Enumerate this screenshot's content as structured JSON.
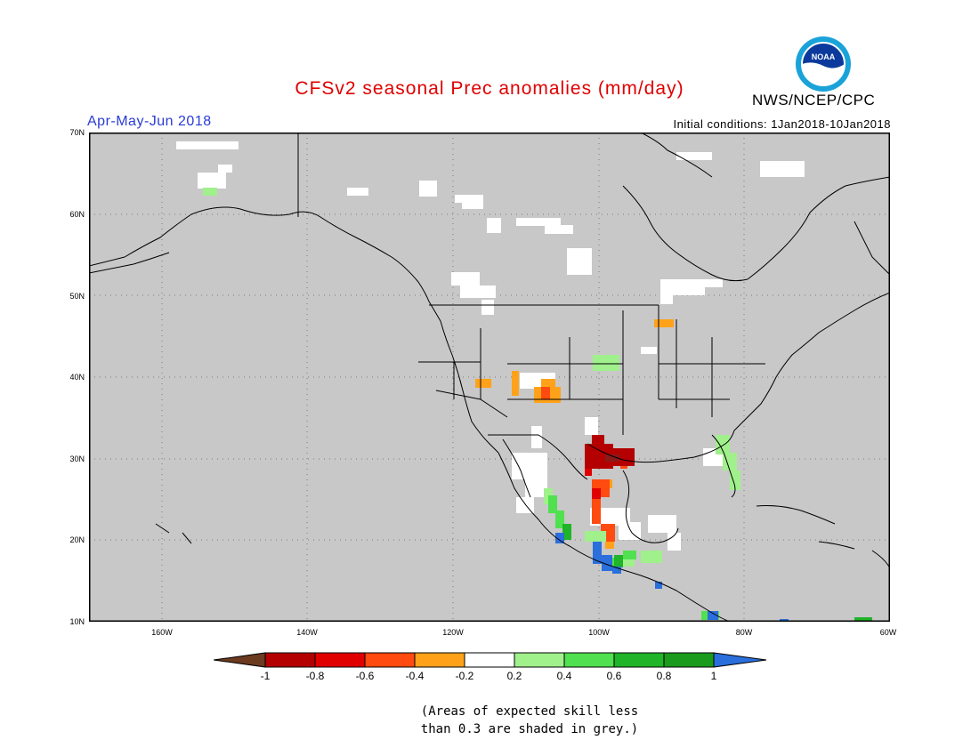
{
  "title": "CFSv2 seasonal Prec anomalies (mm/day)",
  "agency": "NWS/NCEP/CPC",
  "logo_text": "NOAA",
  "season": "Apr-May-Jun 2018",
  "initial_conditions": "Initial conditions: 1Jan2018-10Jan2018",
  "lat_labels": [
    "70N",
    "60N",
    "50N",
    "40N",
    "30N",
    "20N",
    "10N"
  ],
  "lon_labels": [
    "160W",
    "140W",
    "120W",
    "100W",
    "80W",
    "60W"
  ],
  "colorbar": {
    "labels": [
      "-1",
      "-0.8",
      "-0.6",
      "-0.4",
      "-0.2",
      "0.2",
      "0.4",
      "0.6",
      "0.8",
      "1"
    ],
    "colors": [
      "#6b3a1f",
      "#b40000",
      "#e00000",
      "#ff4a10",
      "#ffa21a",
      "#ffffff",
      "#a0f08c",
      "#50e050",
      "#20b428",
      "#1b9b1b",
      "#2a6fdc"
    ]
  },
  "note_line1": "(Areas of expected skill less",
  "note_line2": "than 0.3 are shaded in grey.)",
  "colors": {
    "background_grey": "#c8c8c8",
    "title_red": "#e00000",
    "season_blue": "#2a3bd6"
  }
}
